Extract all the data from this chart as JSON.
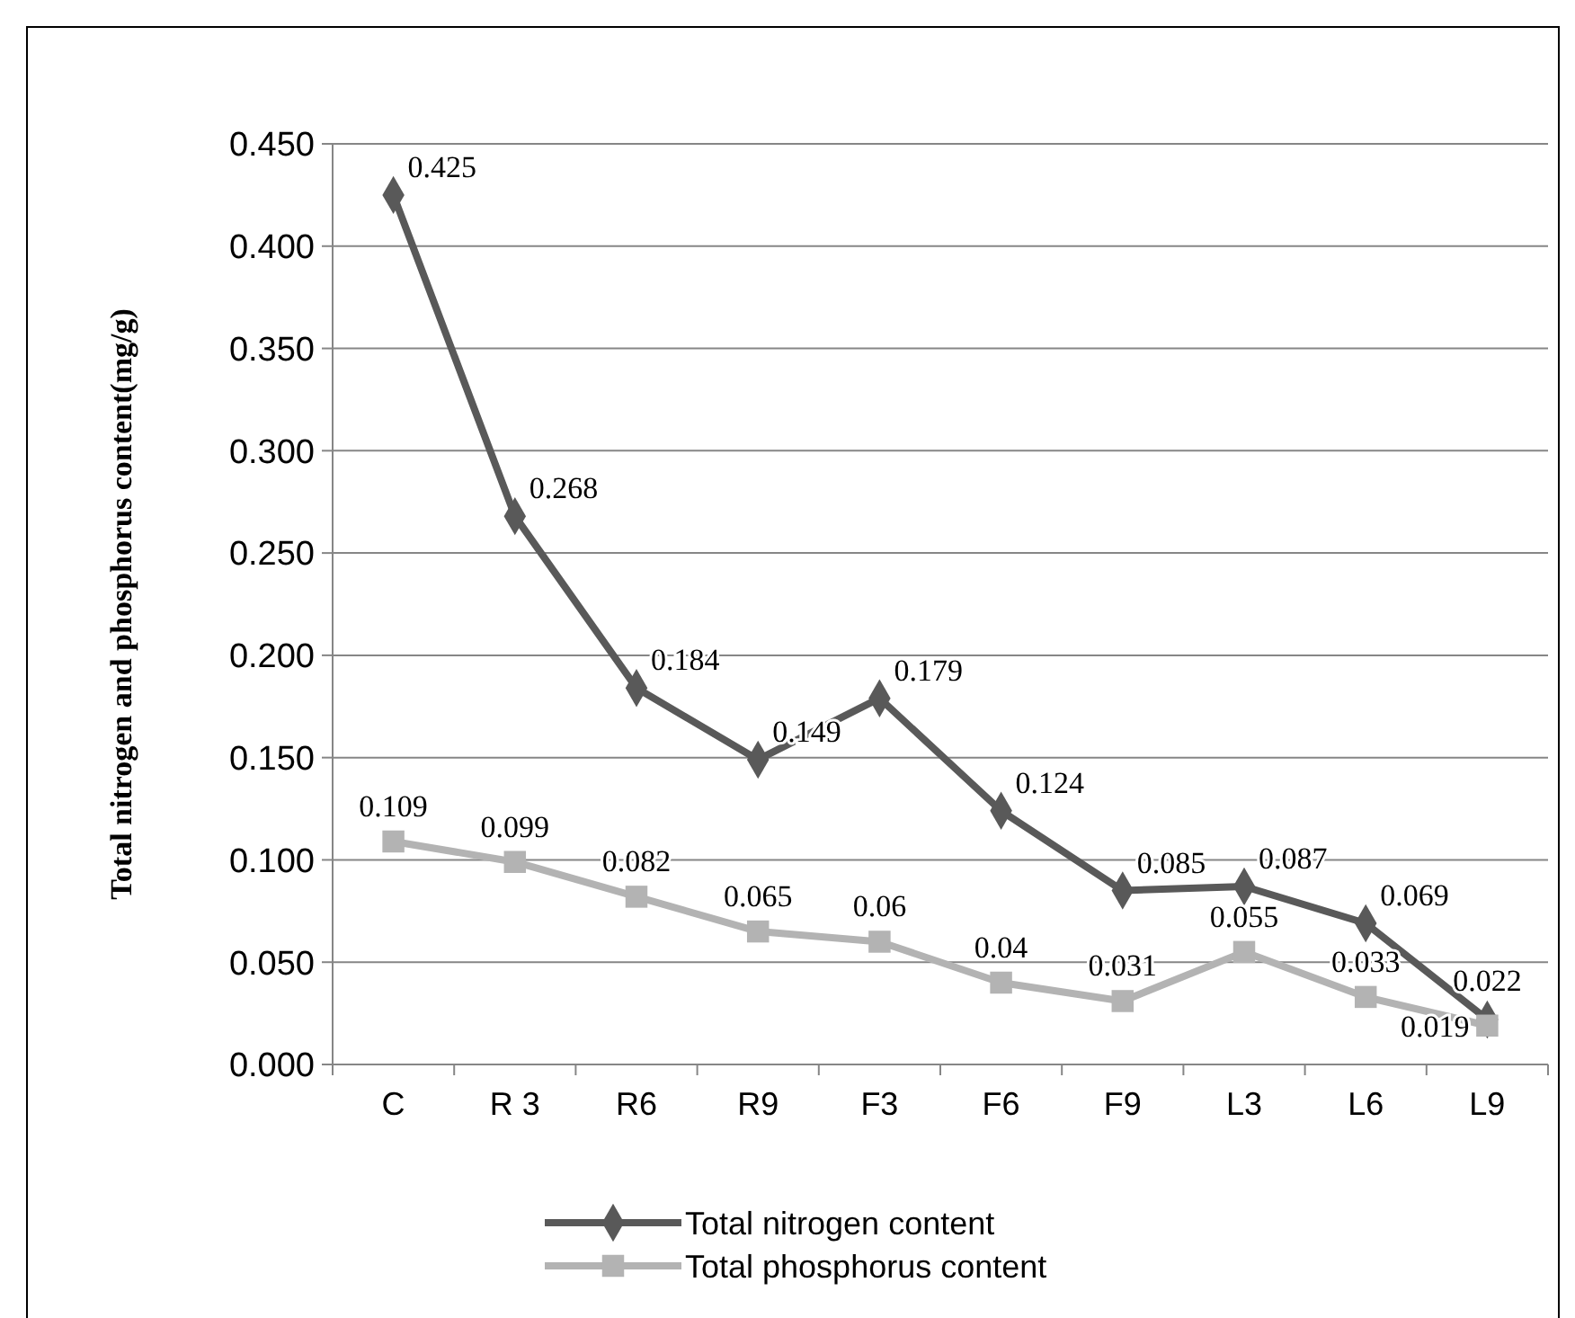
{
  "chart_data": {
    "type": "line",
    "ylabel": "Total nitrogen and phosphorus content(mg/g)",
    "categories": [
      "C",
      "R 3",
      "R6",
      "R9",
      "F3",
      "F6",
      "F9",
      "L3",
      "L6",
      "L9"
    ],
    "series": [
      {
        "name": "Total nitrogen content",
        "color": "#595959",
        "marker": "diamond",
        "values": [
          0.425,
          0.268,
          0.184,
          0.149,
          0.179,
          0.124,
          0.085,
          0.087,
          0.069,
          0.022
        ]
      },
      {
        "name": "Total phosphorus content",
        "color": "#b3b3b3",
        "marker": "square",
        "values": [
          0.109,
          0.099,
          0.082,
          0.065,
          0.06,
          0.04,
          0.031,
          0.055,
          0.033,
          0.019
        ]
      }
    ],
    "ylim": [
      0,
      0.45
    ],
    "yticks": [
      {
        "value": 0,
        "label": "0.000"
      },
      {
        "value": 0.05,
        "label": "0.050"
      },
      {
        "value": 0.1,
        "label": "0.100"
      },
      {
        "value": 0.15,
        "label": "0.150"
      },
      {
        "value": 0.2,
        "label": "0.200"
      },
      {
        "value": 0.25,
        "label": "0.250"
      },
      {
        "value": 0.3,
        "label": "0.300"
      },
      {
        "value": 0.35,
        "label": "0.350"
      },
      {
        "value": 0.4,
        "label": "0.400"
      },
      {
        "value": 0.45,
        "label": "0.450"
      }
    ],
    "grid": "y",
    "legend": "bottom",
    "data_labels": true,
    "line_style": "solid"
  }
}
